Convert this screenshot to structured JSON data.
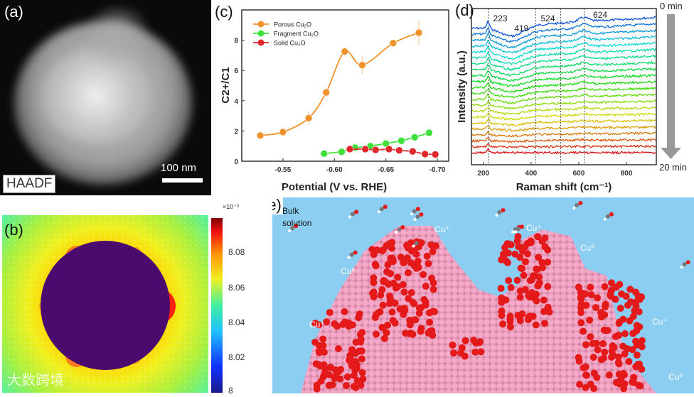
{
  "panel_a": {
    "label": "(a)",
    "mode": "HAADF",
    "scale_bar": "100 nm"
  },
  "panel_b": {
    "label": "(b)",
    "colorbar_exponent": "×10⁻³",
    "colorbar_ticks": [
      "8.08",
      "8.06",
      "8.04",
      "8.02",
      "8"
    ],
    "colorbar_range": [
      8.0,
      8.1
    ],
    "watermark": "大数跨境"
  },
  "panel_e": {
    "label": "(e)",
    "bulk_line1": "Bulk",
    "bulk_line2": "solution",
    "site_labels": [
      "Cu⁺",
      "Cu⁺",
      "Cu⁰",
      "Cu⁰",
      "Cu⁺",
      "Cu⁺",
      "Cu⁰"
    ]
  },
  "colors": {
    "porous": "#f0922a",
    "fragment": "#3ee03a",
    "solid": "#e0282a",
    "solution": "#8ccdf2",
    "cu": "#f2a6c6",
    "oxygen": "#e41a1a"
  },
  "chart_data": [
    {
      "type": "line",
      "label": "(c)",
      "title": "",
      "xlabel": "Potential (V vs. RHE)",
      "ylabel": "C2+/C1",
      "xlim": [
        -0.51,
        -0.711
      ],
      "ylim": [
        0,
        10
      ],
      "xticks": [
        "-0.55",
        "-0.60",
        "-0.65",
        "-0.70"
      ],
      "xtick_values": [
        -0.55,
        -0.6,
        -0.65,
        -0.7
      ],
      "yticks": [
        "0",
        "2",
        "4",
        "6",
        "8"
      ],
      "ytick_values": [
        0,
        2,
        4,
        6,
        8
      ],
      "legend": "top-left",
      "series": [
        {
          "name": "Porous Cu₂O",
          "color": "#f0922a",
          "x": [
            -0.528,
            -0.55,
            -0.575,
            -0.592,
            -0.61,
            -0.627,
            -0.657,
            -0.682
          ],
          "y": [
            1.7,
            1.93,
            2.85,
            4.55,
            7.25,
            6.35,
            7.8,
            8.5
          ],
          "err": [
            0,
            0,
            0.45,
            0.25,
            0,
            0.6,
            0.25,
            0.8
          ]
        },
        {
          "name": "Fragment Cu₂O",
          "color": "#3ee03a",
          "x": [
            -0.59,
            -0.607,
            -0.62,
            -0.635,
            -0.65,
            -0.665,
            -0.678,
            -0.692
          ],
          "y": [
            0.5,
            0.62,
            0.9,
            1.0,
            1.17,
            1.35,
            1.58,
            1.88
          ],
          "err": [
            0,
            0,
            0,
            0,
            0,
            0,
            0,
            0
          ]
        },
        {
          "name": "Solid Cu₂O",
          "color": "#e0282a",
          "x": [
            -0.615,
            -0.63,
            -0.64,
            -0.653,
            -0.663,
            -0.676,
            -0.688,
            -0.698
          ],
          "y": [
            0.8,
            0.8,
            0.75,
            0.8,
            0.72,
            0.65,
            0.47,
            0.45
          ],
          "err": [
            0,
            0,
            0,
            0,
            0,
            0,
            0,
            0
          ]
        }
      ]
    },
    {
      "type": "line",
      "label": "(d)",
      "xlabel": "Raman shift (cm⁻¹)",
      "ylabel": "Intensity (a.u.)",
      "xlim": [
        150,
        925
      ],
      "xticks": [
        "200",
        "400",
        "600",
        "800"
      ],
      "xtick_values": [
        200,
        400,
        600,
        800
      ],
      "peaks": [
        223,
        419,
        524,
        624
      ],
      "peak_labels": [
        "223",
        "419",
        "524",
        "624"
      ],
      "spectra_count": 22,
      "time_start": "0 min",
      "time_end": "20 min"
    }
  ]
}
